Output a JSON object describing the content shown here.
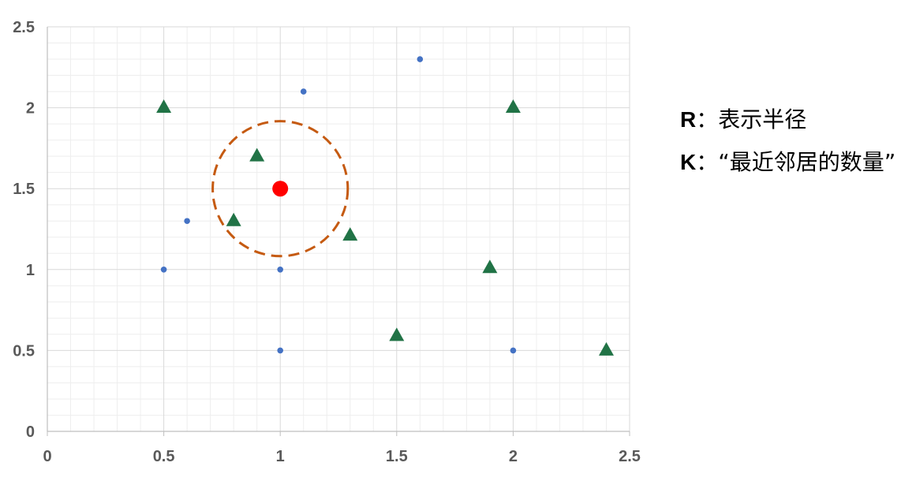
{
  "chart_data": {
    "type": "scatter",
    "xlim": [
      0,
      2.5
    ],
    "ylim": [
      0,
      2.5
    ],
    "x_ticks": [
      "0",
      "0.5",
      "1",
      "1.5",
      "2",
      "2.5"
    ],
    "y_ticks": [
      "0",
      "0.5",
      "1",
      "1.5",
      "2",
      "2.5"
    ],
    "grid": true,
    "series": [
      {
        "marker": "circle-small",
        "color": "#4472C4",
        "points": [
          {
            "x": 1.6,
            "y": 2.3
          },
          {
            "x": 1.1,
            "y": 2.1
          },
          {
            "x": 0.6,
            "y": 1.3
          },
          {
            "x": 0.5,
            "y": 1.0
          },
          {
            "x": 1.0,
            "y": 1.0
          },
          {
            "x": 1.0,
            "y": 0.5
          },
          {
            "x": 2.0,
            "y": 0.5
          }
        ]
      },
      {
        "marker": "triangle",
        "color": "#217346",
        "points": [
          {
            "x": 0.5,
            "y": 2.0
          },
          {
            "x": 2.0,
            "y": 2.0
          },
          {
            "x": 0.9,
            "y": 1.7
          },
          {
            "x": 0.8,
            "y": 1.3
          },
          {
            "x": 1.3,
            "y": 1.21
          },
          {
            "x": 1.9,
            "y": 1.01
          },
          {
            "x": 1.5,
            "y": 0.59
          },
          {
            "x": 2.4,
            "y": 0.5
          }
        ]
      },
      {
        "marker": "circle-large",
        "color": "#FF0000",
        "points": [
          {
            "x": 1.0,
            "y": 1.5
          }
        ]
      }
    ],
    "radius_circle": {
      "center": {
        "x": 1.0,
        "y": 1.5
      },
      "radius": 0.29,
      "color": "#C55A11",
      "style": "dashed"
    }
  },
  "legend": {
    "r_key": "R",
    "r_text": "：表示半径",
    "k_key": "K",
    "k_text": "：“最近邻居的数量”"
  }
}
